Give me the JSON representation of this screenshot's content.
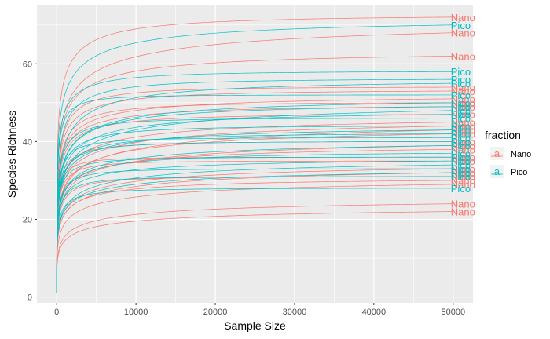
{
  "chart_data": {
    "type": "line",
    "title": "",
    "xlabel": "Sample Size",
    "ylabel": "Species Richness",
    "xlim": [
      -2500,
      52500
    ],
    "ylim": [
      -1.5,
      75
    ],
    "x_ticks": [
      0,
      10000,
      20000,
      30000,
      40000,
      50000
    ],
    "x_tick_labels": [
      "0",
      "10000",
      "20000",
      "30000",
      "40000",
      "50000"
    ],
    "y_ticks": [
      0,
      20,
      40,
      60
    ],
    "y_tick_labels": [
      "0",
      "20",
      "40",
      "60"
    ],
    "grid": true,
    "end_x": 50000,
    "legend": {
      "title": "fraction",
      "position": "right",
      "key_glyph": "a",
      "entries": [
        {
          "name": "Nano",
          "color": "#F8766D"
        },
        {
          "name": "Pico",
          "color": "#00BFC4"
        }
      ]
    },
    "series": [
      {
        "name": "Nano",
        "color": "#F8766D",
        "final_richness": [
          72,
          68,
          62,
          54,
          53,
          51,
          50,
          49,
          47,
          45,
          44,
          43,
          42,
          40,
          39,
          38,
          36,
          35,
          33,
          32,
          31,
          30,
          29,
          24,
          22
        ]
      },
      {
        "name": "Pico",
        "color": "#00BFC4",
        "final_richness": [
          70,
          58,
          56,
          55,
          52,
          50,
          49,
          48,
          47,
          46,
          44,
          43,
          42,
          41,
          40,
          39,
          37,
          36,
          35,
          34,
          33,
          32,
          31,
          28
        ]
      }
    ]
  }
}
